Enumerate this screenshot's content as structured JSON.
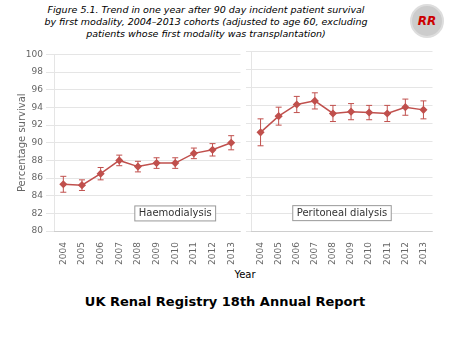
{
  "title": "Figure 5.1. Trend in one year after 90 day incident patient survival\nby first modality, 2004–2013 cohorts (adjusted to age 60, excluding\npatients whose first modality was transplantation)",
  "x_label": "Year",
  "annotations": [
    "UK Renal Registry 18th Annual Report",
    "RR"
  ],
  "chart_data": [
    {
      "type": "line",
      "title": "Haemodialysis",
      "y_label": "Percentage survival",
      "categories": [
        "2004",
        "2005",
        "2006",
        "2007",
        "2008",
        "2009",
        "2010",
        "2011",
        "2012",
        "2013"
      ],
      "values": [
        85.3,
        85.2,
        86.5,
        88.0,
        87.3,
        87.7,
        87.7,
        88.8,
        89.2,
        90.0
      ],
      "errors": [
        0.9,
        0.6,
        0.7,
        0.6,
        0.6,
        0.6,
        0.6,
        0.6,
        0.7,
        0.8
      ],
      "color": "#c0504d",
      "marker": "diamond",
      "ylim": [
        80,
        100
      ],
      "yticks": [
        80,
        82,
        84,
        86,
        88,
        90,
        92,
        94,
        96,
        98,
        100
      ],
      "grid": true
    },
    {
      "type": "line",
      "title": "Peritoneal dialysis",
      "categories": [
        "2004",
        "2005",
        "2006",
        "2007",
        "2008",
        "2009",
        "2010",
        "2011",
        "2012",
        "2013"
      ],
      "values": [
        91.0,
        92.8,
        94.1,
        94.5,
        93.1,
        93.3,
        93.2,
        93.1,
        93.8,
        93.5
      ],
      "errors": [
        1.5,
        1.0,
        0.9,
        0.9,
        0.9,
        0.9,
        0.8,
        0.9,
        0.9,
        1.0
      ],
      "color": "#c0504d",
      "marker": "diamond",
      "ylim": [
        80,
        100
      ],
      "yticks": [
        80,
        82,
        84,
        86,
        88,
        90,
        92,
        94,
        96,
        98,
        100
      ],
      "grid": true,
      "tick_labels": "x"
    }
  ]
}
